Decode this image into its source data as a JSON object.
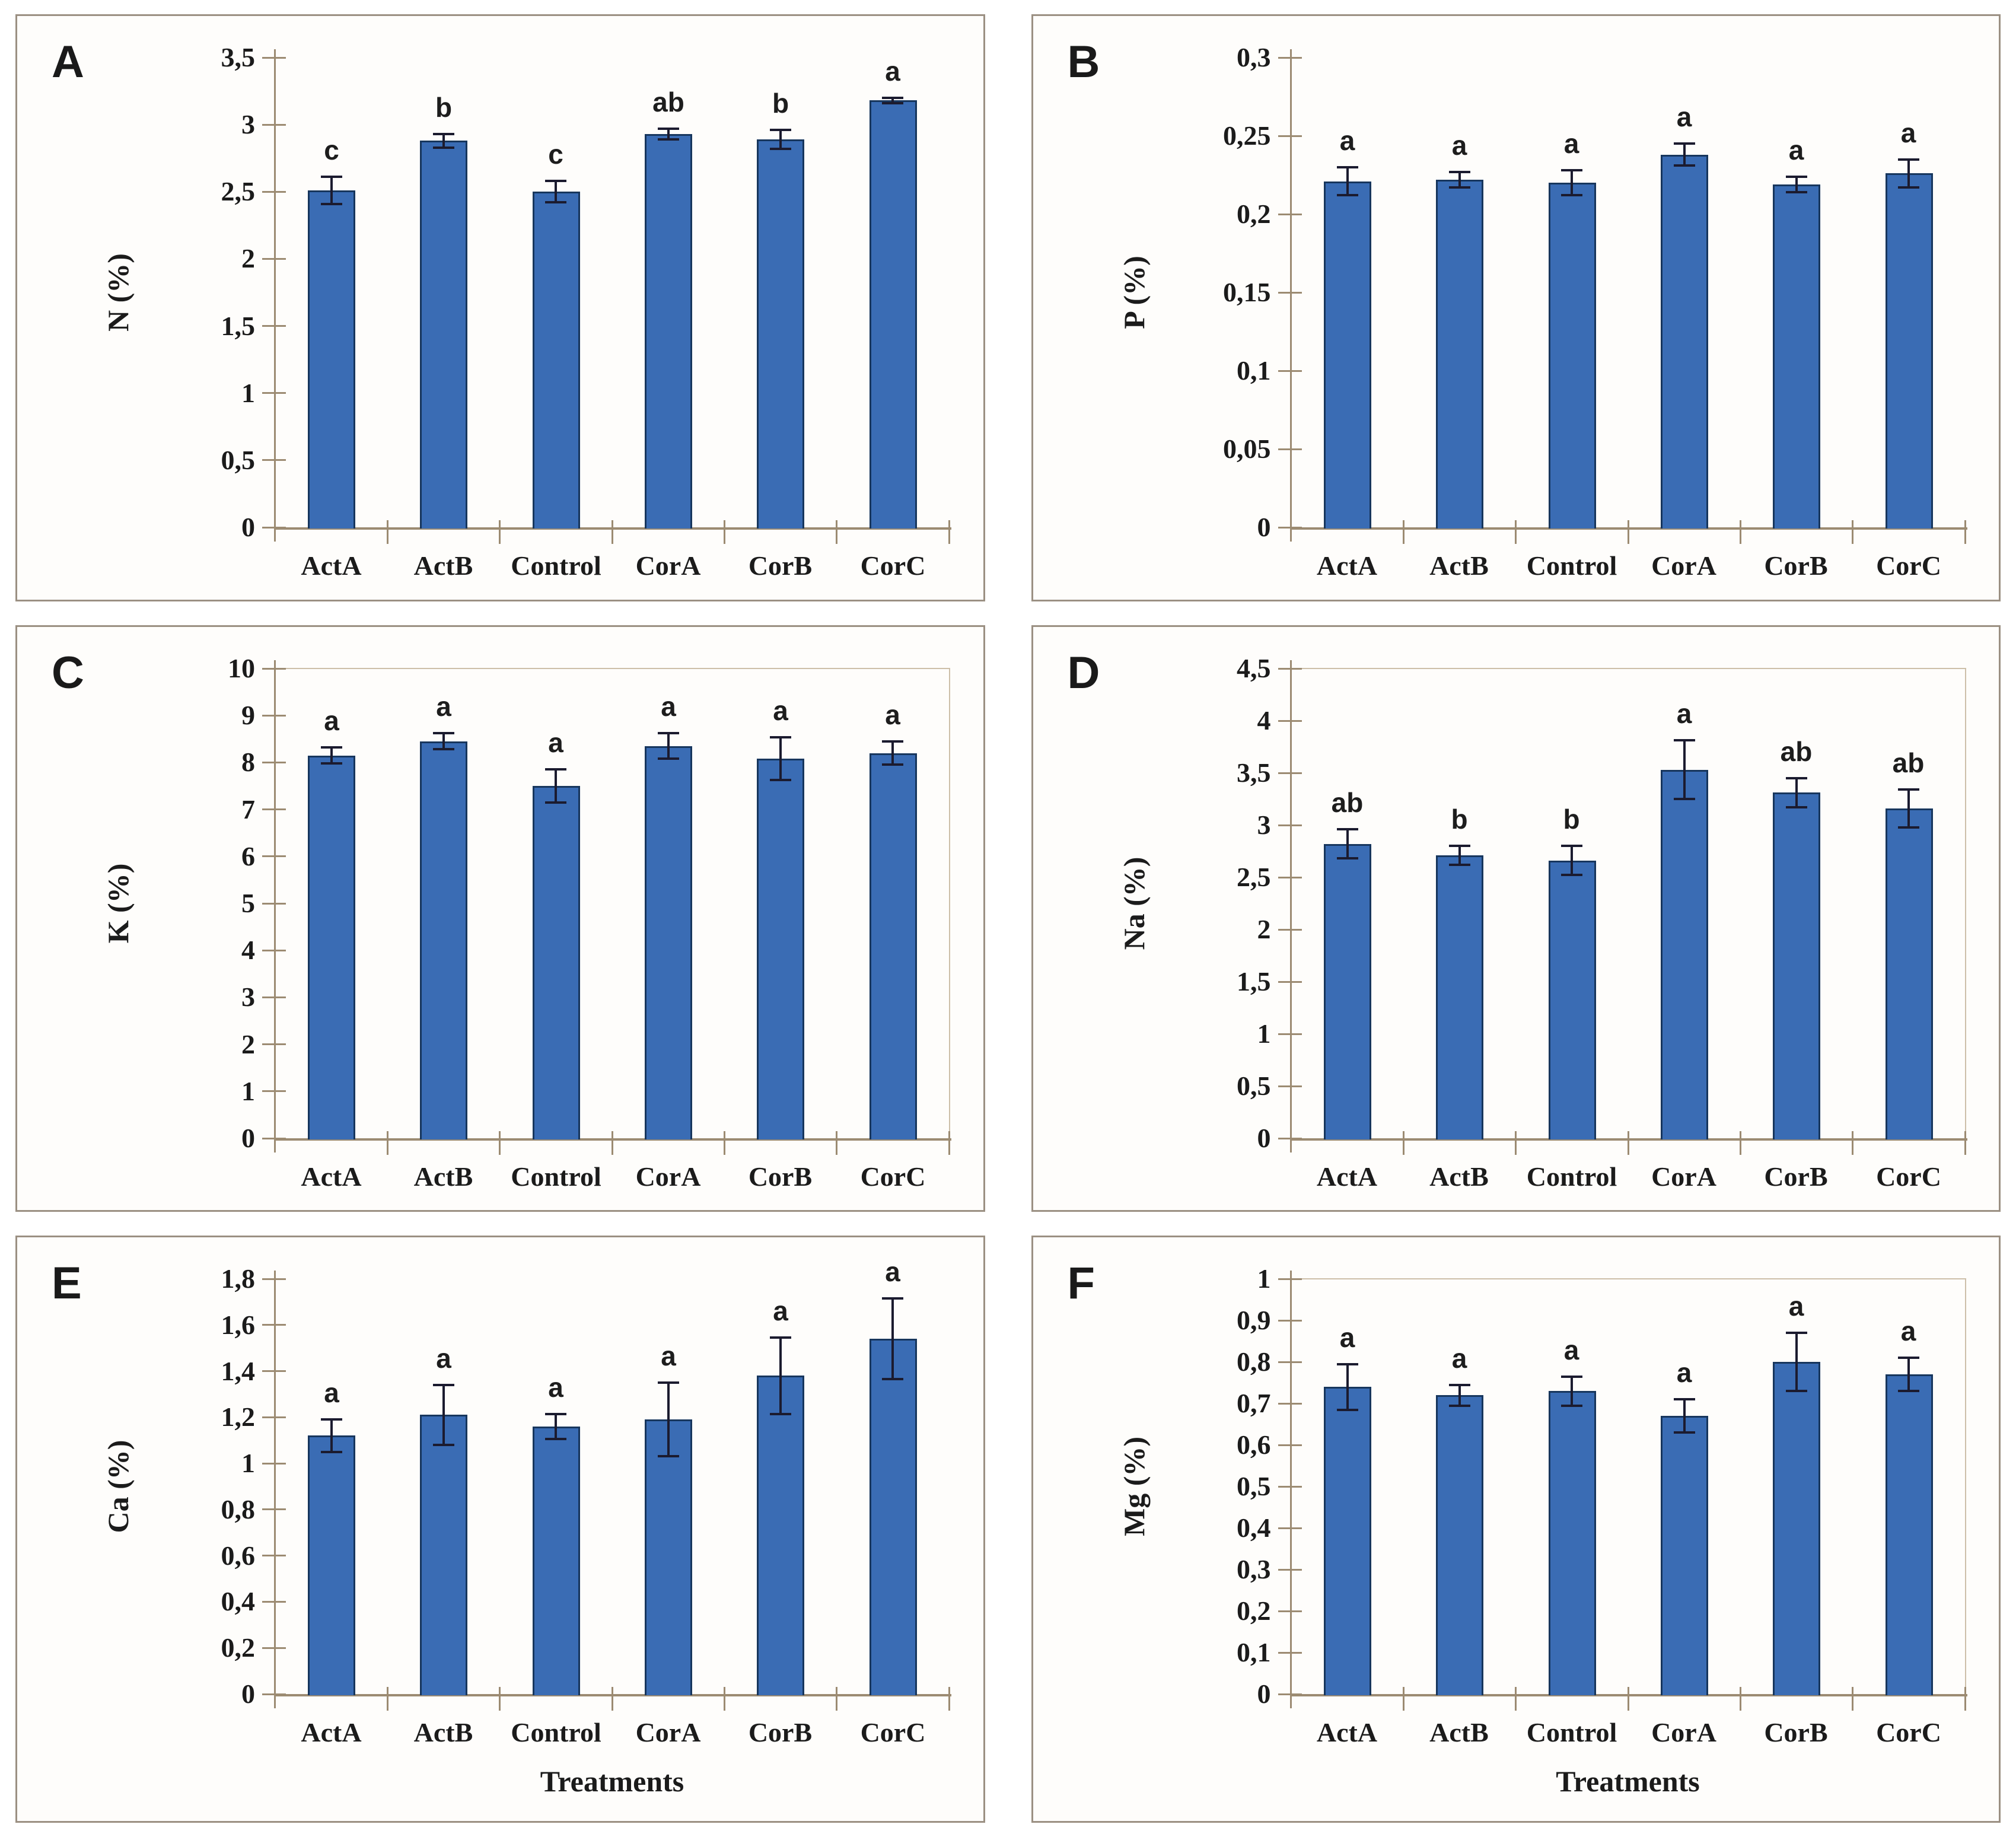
{
  "figure": {
    "description": "Six-panel bar chart figure of leaf nutrient concentrations by treatment",
    "x_axis_title": "Treatments"
  },
  "colors": {
    "bar_fill": "#3a6cb4",
    "bar_border": "#17365d",
    "error_bar": "#1b1b2f",
    "axis": "#9c8b72",
    "plot_border": "#cdbfa9",
    "panel_border": "#9b9083",
    "panel_bg": "#fefdfb",
    "text": "#1b1b1b"
  },
  "chart_data": [
    {
      "type": "bar",
      "panel_letter": "A",
      "ylabel": "N (%)",
      "ymax": 3.5,
      "ytick_labels": [
        "0",
        "0,5",
        "1",
        "1,5",
        "2",
        "2,5",
        "3",
        "3,5"
      ],
      "categories": [
        "ActA",
        "ActB",
        "Control",
        "CorA",
        "CorB",
        "CorC"
      ],
      "values": [
        2.51,
        2.88,
        2.5,
        2.93,
        2.89,
        3.18
      ],
      "errors": [
        0.1,
        0.05,
        0.08,
        0.04,
        0.07,
        0.02
      ],
      "sig_letters": [
        "c",
        "b",
        "c",
        "ab",
        "b",
        "a"
      ],
      "x_title": "",
      "plot_border": false
    },
    {
      "type": "bar",
      "panel_letter": "B",
      "ylabel": "P (%)",
      "ymax": 0.3,
      "ytick_labels": [
        "0",
        "0,05",
        "0,1",
        "0,15",
        "0,2",
        "0,25",
        "0,3"
      ],
      "categories": [
        "ActA",
        "ActB",
        "Control",
        "CorA",
        "CorB",
        "CorC"
      ],
      "values": [
        0.221,
        0.222,
        0.22,
        0.238,
        0.219,
        0.226
      ],
      "errors": [
        0.009,
        0.005,
        0.008,
        0.007,
        0.005,
        0.009
      ],
      "sig_letters": [
        "a",
        "a",
        "a",
        "a",
        "a",
        "a"
      ],
      "x_title": "",
      "plot_border": false
    },
    {
      "type": "bar",
      "panel_letter": "C",
      "ylabel": "K (%)",
      "ymax": 10,
      "ytick_labels": [
        "0",
        "1",
        "2",
        "3",
        "4",
        "5",
        "6",
        "7",
        "8",
        "9",
        "10"
      ],
      "categories": [
        "ActA",
        "ActB",
        "Control",
        "CorA",
        "CorB",
        "CorC"
      ],
      "values": [
        8.15,
        8.45,
        7.5,
        8.35,
        8.08,
        8.2
      ],
      "errors": [
        0.17,
        0.17,
        0.35,
        0.27,
        0.45,
        0.25
      ],
      "sig_letters": [
        "a",
        "a",
        "a",
        "a",
        "a",
        "a"
      ],
      "x_title": "",
      "plot_border": true
    },
    {
      "type": "bar",
      "panel_letter": "D",
      "ylabel": "Na (%)",
      "ymax": 4.5,
      "ytick_labels": [
        "0",
        "0,5",
        "1",
        "1,5",
        "2",
        "2,5",
        "3",
        "3,5",
        "4",
        "4,5"
      ],
      "categories": [
        "ActA",
        "ActB",
        "Control",
        "CorA",
        "CorB",
        "CorC"
      ],
      "values": [
        2.82,
        2.71,
        2.66,
        3.53,
        3.31,
        3.16
      ],
      "errors": [
        0.14,
        0.09,
        0.14,
        0.28,
        0.14,
        0.18
      ],
      "sig_letters": [
        "ab",
        "b",
        "b",
        "a",
        "ab",
        "ab"
      ],
      "x_title": "",
      "plot_border": true
    },
    {
      "type": "bar",
      "panel_letter": "E",
      "ylabel": "Ca (%)",
      "ymax": 1.8,
      "ytick_labels": [
        "0",
        "0,2",
        "0,4",
        "0,6",
        "0,8",
        "1",
        "1,2",
        "1,4",
        "1,6",
        "1,8"
      ],
      "categories": [
        "ActA",
        "ActB",
        "Control",
        "CorA",
        "CorB",
        "CorC"
      ],
      "values": [
        1.12,
        1.21,
        1.16,
        1.19,
        1.38,
        1.54
      ],
      "errors": [
        0.07,
        0.13,
        0.055,
        0.16,
        0.165,
        0.175
      ],
      "sig_letters": [
        "a",
        "a",
        "a",
        "a",
        "a",
        "a"
      ],
      "x_title": "Treatments",
      "plot_border": false
    },
    {
      "type": "bar",
      "panel_letter": "F",
      "ylabel": "Mg (%)",
      "ymax": 1.0,
      "ytick_labels": [
        "0",
        "0,1",
        "0,2",
        "0,3",
        "0,4",
        "0,5",
        "0,6",
        "0,7",
        "0,8",
        "0,9",
        "1"
      ],
      "categories": [
        "ActA",
        "ActB",
        "Control",
        "CorA",
        "CorB",
        "CorC"
      ],
      "values": [
        0.74,
        0.72,
        0.73,
        0.67,
        0.8,
        0.77
      ],
      "errors": [
        0.055,
        0.025,
        0.035,
        0.04,
        0.07,
        0.04
      ],
      "sig_letters": [
        "a",
        "a",
        "a",
        "a",
        "a",
        "a"
      ],
      "x_title": "Treatments",
      "plot_border": true
    }
  ]
}
